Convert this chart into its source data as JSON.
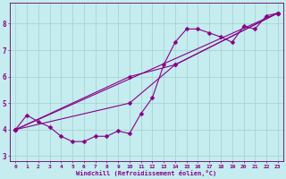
{
  "xlabel": "Windchill (Refroidissement éolien,°C)",
  "background_color": "#c5ecee",
  "grid_color": "#a0d0d4",
  "line_color": "#880088",
  "spine_color": "#660066",
  "xlim": [
    -0.5,
    23.5
  ],
  "ylim": [
    2.8,
    8.8
  ],
  "yticks": [
    3,
    4,
    5,
    6,
    7,
    8
  ],
  "xticks": [
    0,
    1,
    2,
    3,
    4,
    5,
    6,
    7,
    8,
    9,
    10,
    11,
    12,
    13,
    14,
    15,
    16,
    17,
    18,
    19,
    20,
    21,
    22,
    23
  ],
  "series1_x": [
    0,
    1,
    2,
    3,
    4,
    5,
    6,
    7,
    8,
    9,
    10,
    11,
    12,
    13,
    14,
    15,
    16,
    17,
    18,
    19,
    20,
    21,
    22,
    23
  ],
  "series1_y": [
    4.0,
    4.55,
    4.3,
    4.1,
    3.75,
    3.55,
    3.55,
    3.75,
    3.75,
    3.95,
    3.85,
    4.6,
    5.2,
    6.45,
    7.3,
    7.8,
    7.8,
    7.65,
    7.5,
    7.3,
    7.9,
    7.8,
    8.3,
    8.4
  ],
  "series2_x": [
    0,
    23
  ],
  "series2_y": [
    4.0,
    8.4
  ],
  "series3_x": [
    0,
    10,
    14,
    23
  ],
  "series3_y": [
    4.0,
    6.0,
    6.45,
    8.4
  ],
  "series4_x": [
    0,
    10,
    14,
    23
  ],
  "series4_y": [
    4.0,
    5.0,
    6.45,
    8.4
  ],
  "markersize": 2.5
}
